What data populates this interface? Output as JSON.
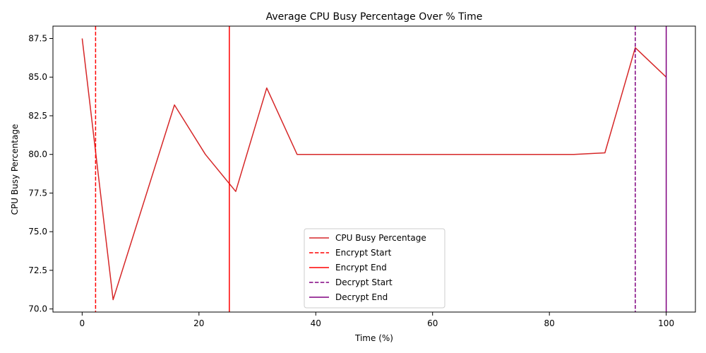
{
  "chart_data": {
    "type": "line",
    "title": "Average CPU Busy Percentage Over % Time",
    "xlabel": "Time (%)",
    "ylabel": "CPU Busy Percentage",
    "xlim": [
      -5,
      105
    ],
    "ylim": [
      69.8,
      88.3
    ],
    "x_ticks": [
      0,
      20,
      40,
      60,
      80,
      100
    ],
    "x_tick_labels": [
      "0",
      "20",
      "40",
      "60",
      "80",
      "100"
    ],
    "y_ticks": [
      70.0,
      72.5,
      75.0,
      77.5,
      80.0,
      82.5,
      85.0,
      87.5
    ],
    "y_tick_labels": [
      "70.0",
      "72.5",
      "75.0",
      "77.5",
      "80.0",
      "82.5",
      "85.0",
      "87.5"
    ],
    "grid": false,
    "legend_position": "bottom-center",
    "series": [
      {
        "name": "CPU Busy Percentage",
        "color": "#d62728",
        "x": [
          0,
          5.3,
          15.8,
          21.1,
          26.3,
          31.6,
          36.8,
          42.1,
          47.4,
          52.6,
          57.9,
          63.2,
          68.4,
          73.7,
          78.9,
          84.2,
          89.5,
          94.7,
          100
        ],
        "y": [
          87.5,
          70.6,
          83.2,
          80.0,
          77.6,
          84.3,
          80.0,
          80.0,
          80.0,
          80.0,
          80.0,
          80.0,
          80.0,
          80.0,
          80.0,
          80.0,
          80.1,
          86.9,
          85.0
        ]
      }
    ],
    "vlines": [
      {
        "name": "Encrypt Start",
        "x": 2.3,
        "color": "#ff0000",
        "style": "dashed"
      },
      {
        "name": "Encrypt End",
        "x": 25.2,
        "color": "#ff0000",
        "style": "solid"
      },
      {
        "name": "Decrypt Start",
        "x": 94.7,
        "color": "#800080",
        "style": "dashed"
      },
      {
        "name": "Decrypt End",
        "x": 100,
        "color": "#800080",
        "style": "solid"
      }
    ]
  }
}
